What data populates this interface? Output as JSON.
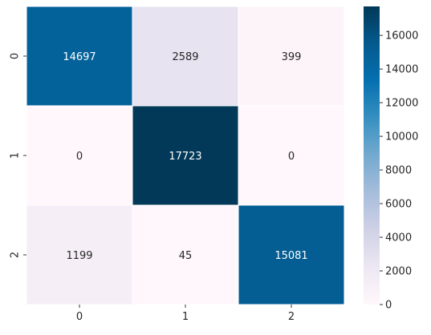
{
  "chart_data": {
    "type": "heatmap",
    "x_labels": [
      "0",
      "1",
      "2"
    ],
    "y_labels": [
      "0",
      "1",
      "2"
    ],
    "values": [
      [
        14697,
        2589,
        399
      ],
      [
        0,
        17723,
        0
      ],
      [
        1199,
        45,
        15081
      ]
    ],
    "value_range": [
      0,
      17723
    ],
    "colormap": "PuBu",
    "colorbar_ticks": [
      0,
      2000,
      4000,
      6000,
      8000,
      10000,
      12000,
      14000,
      16000
    ],
    "title": "",
    "xlabel": "",
    "ylabel": "",
    "grid": false
  }
}
